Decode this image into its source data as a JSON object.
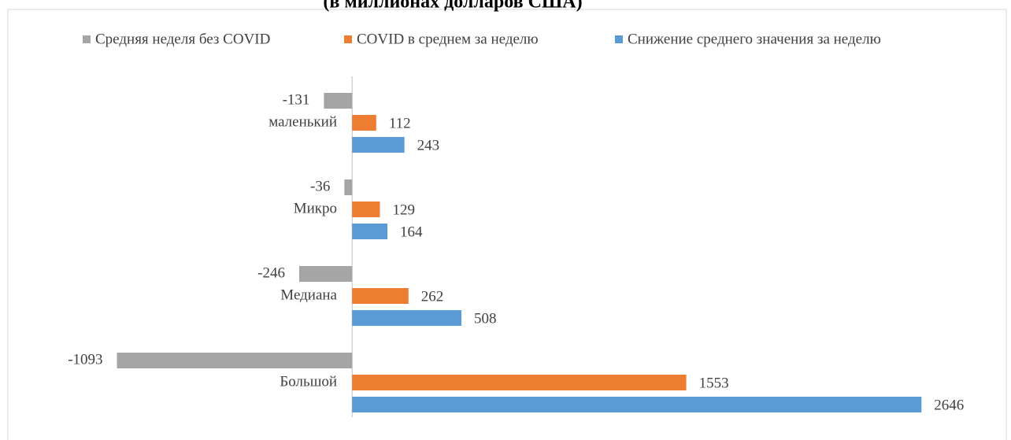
{
  "chart_data": {
    "type": "barh",
    "title": "(в миллионах долларов США)",
    "categories": [
      "маленький",
      "Микро",
      "Медиана",
      "Большой"
    ],
    "series": [
      {
        "name": "Средняя неделя без COVID",
        "color": "#a5a5a5",
        "values": [
          -131,
          -36,
          -246,
          -1093
        ]
      },
      {
        "name": "COVID в среднем за неделю",
        "color": "#ed7d31",
        "values": [
          112,
          129,
          262,
          1553
        ]
      },
      {
        "name": "Снижение среднего значения за неделю",
        "color": "#5b9bd5",
        "values": [
          243,
          164,
          508,
          2646
        ]
      }
    ],
    "xlim": [
      -1600,
      3000
    ],
    "legend": "top"
  }
}
